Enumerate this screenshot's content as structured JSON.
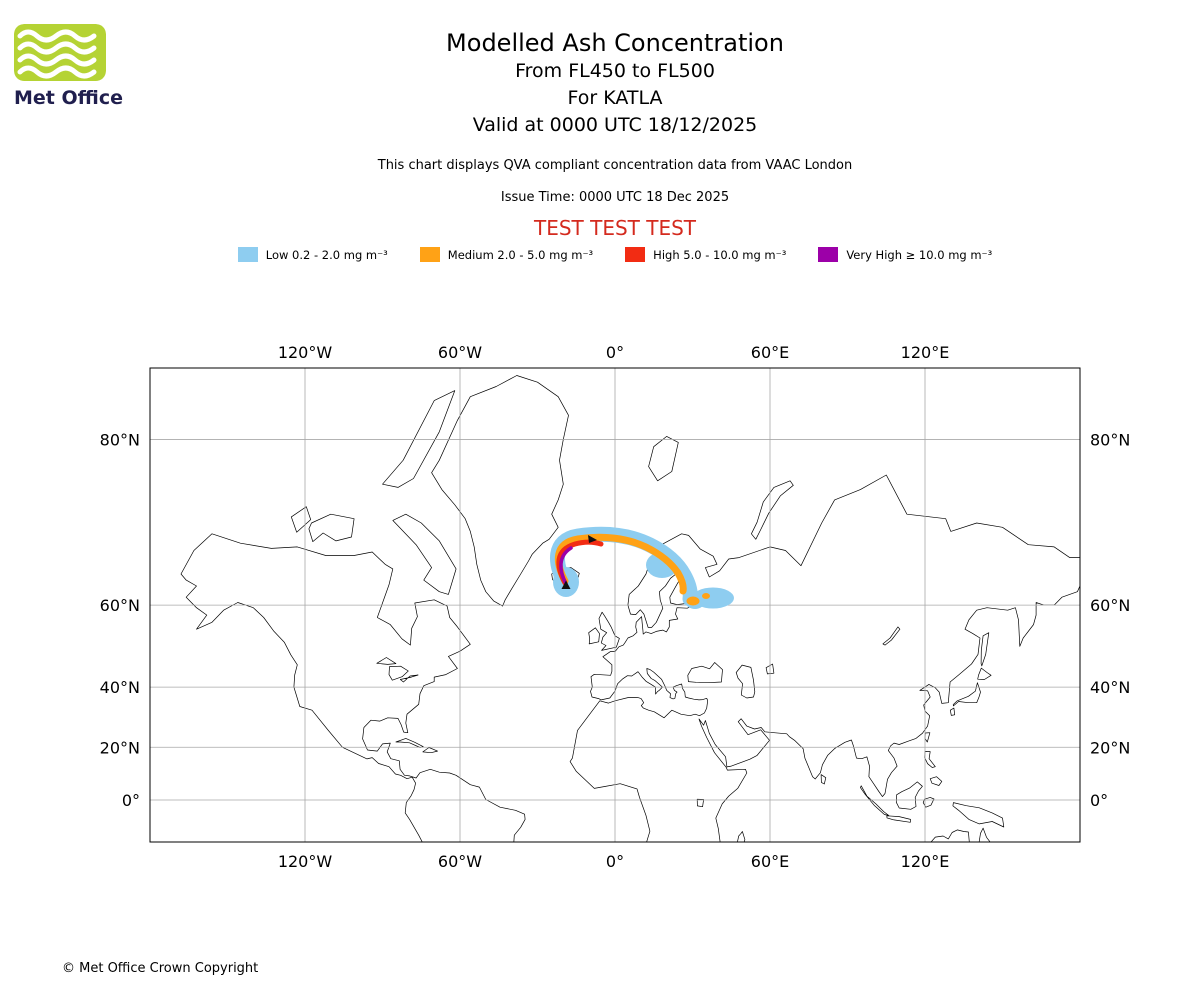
{
  "logo": {
    "text": "Met Office"
  },
  "header": {
    "title": "Modelled Ash Concentration",
    "subtitle_flight_levels": "From FL450 to FL500",
    "subtitle_volcano": "For KATLA",
    "subtitle_valid": "Valid at 0000 UTC 18/12/2025",
    "compliance_note": "This chart displays QVA compliant concentration data from VAAC London",
    "issue_time": "Issue Time: 0000 UTC 18 Dec 2025",
    "test_banner": "TEST TEST TEST"
  },
  "legend": {
    "items": [
      {
        "name": "low",
        "label": "Low 0.2 - 2.0 mg m⁻³",
        "color": "#8ecdf0"
      },
      {
        "name": "medium",
        "label": "Medium 2.0 - 5.0 mg m⁻³",
        "color": "#ffa216"
      },
      {
        "name": "high",
        "label": "High 5.0 - 10.0 mg m⁻³",
        "color": "#f22c13"
      },
      {
        "name": "very-high",
        "label": "Very High ≥ 10.0 mg m⁻³",
        "color": "#9c00a8"
      }
    ]
  },
  "map": {
    "meridian_labels": [
      {
        "label": "120°W",
        "lon": -120
      },
      {
        "label": "60°W",
        "lon": -60
      },
      {
        "label": "0°",
        "lon": 0
      },
      {
        "label": "60°E",
        "lon": 60
      },
      {
        "label": "120°E",
        "lon": 120
      }
    ],
    "parallel_labels": [
      {
        "label": "80°N",
        "lat": 80
      },
      {
        "label": "60°N",
        "lat": 60
      },
      {
        "label": "40°N",
        "lat": 40
      },
      {
        "label": "20°N",
        "lat": 20
      },
      {
        "label": "0°",
        "lat": 0
      }
    ]
  },
  "colors": {
    "test_text": "#d42a1e",
    "gridline": "#a8a8a8",
    "coastline": "#000000",
    "logo_green": "#b5d334",
    "logo_text": "#201f4e",
    "marker_black": "#111111"
  },
  "footer": {
    "copyright": "© Met Office Crown Copyright"
  }
}
